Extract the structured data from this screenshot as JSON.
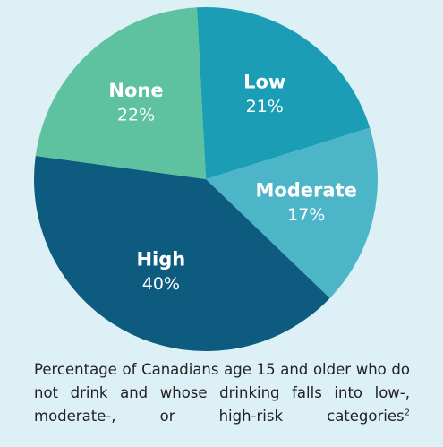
{
  "chart_data": {
    "type": "pie",
    "categories": [
      "Low",
      "Moderate",
      "High",
      "None"
    ],
    "values": [
      21,
      17,
      40,
      22
    ],
    "value_labels": [
      "21%",
      "17%",
      "40%",
      "22%"
    ],
    "colors": [
      "#1b9db6",
      "#4cb6c8",
      "#0e5b80",
      "#5ec19f"
    ],
    "caption": "Percentage of Canadians age 15 and older who do not drink and whose drinking falls into low-, moderate-, or high-risk categories",
    "footnote": "2"
  }
}
